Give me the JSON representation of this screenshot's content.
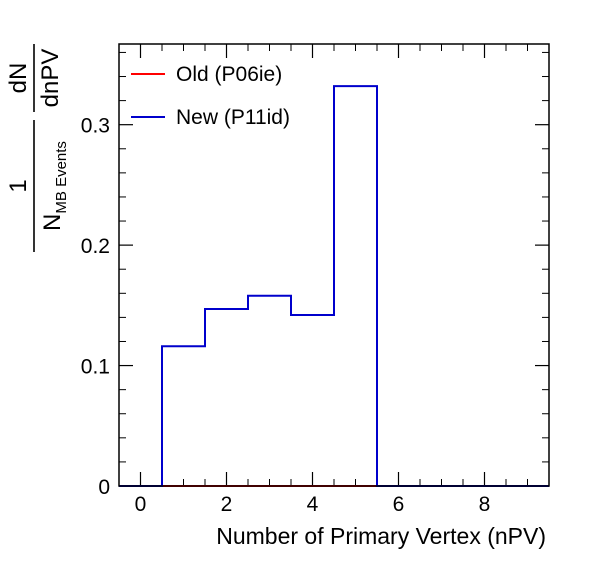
{
  "chart_data": {
    "type": "histogram-step",
    "xlabel": "Number of Primary Vertex (nPV)",
    "ylabel": {
      "numerator": "1",
      "denominator_main": "N",
      "denominator_sub": "MB Events",
      "deriv_top": "dN",
      "deriv_bottom": "dnPV"
    },
    "xlim": [
      -0.5,
      9.5
    ],
    "ylim": [
      0,
      0.367
    ],
    "xticks": [
      0,
      2,
      4,
      6,
      8
    ],
    "yticks": [
      0,
      0.1,
      0.2,
      0.3
    ],
    "xtick_labels": [
      "0",
      "2",
      "4",
      "6",
      "8"
    ],
    "ytick_labels": [
      "0",
      "0.1",
      "0.2",
      "0.3"
    ],
    "bin_edges": [
      -0.5,
      0.5,
      1.5,
      2.5,
      3.5,
      4.5,
      5.5,
      6.5,
      7.5,
      8.5,
      9.5
    ],
    "series": [
      {
        "name": "Old (P06ie)",
        "color": "#ff0000",
        "values": [
          0,
          0,
          0,
          0,
          0,
          0,
          0,
          0,
          0,
          0
        ]
      },
      {
        "name": "New (P11id)",
        "color": "#0000cc",
        "values": [
          0,
          0.116,
          0.147,
          0.158,
          0.142,
          0.332,
          0,
          0,
          0,
          0
        ]
      }
    ],
    "legend_position": "top-left",
    "grid": false
  }
}
